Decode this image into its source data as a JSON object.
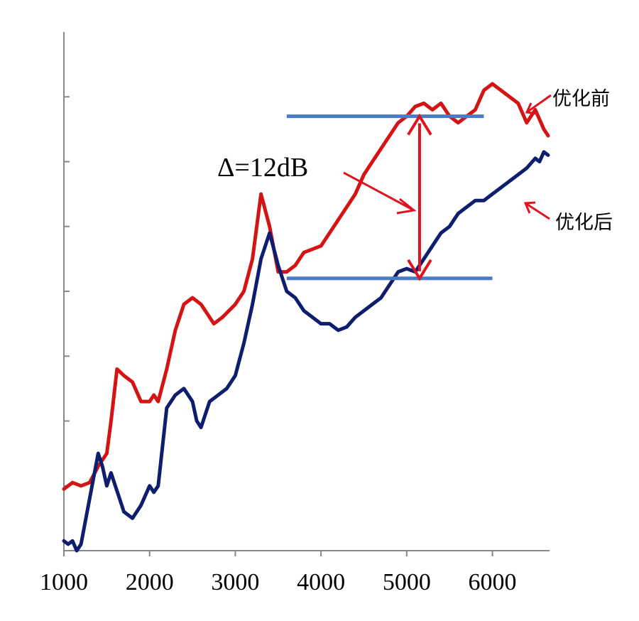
{
  "chart_data": {
    "type": "line",
    "title": "",
    "xlabel": "",
    "ylabel": "",
    "xlim": [
      1000,
      6650
    ],
    "ylim": [
      0,
      8
    ],
    "x_ticks": [
      "1000",
      "2000",
      "3000",
      "4000",
      "5000",
      "6000"
    ],
    "y_ticks": [
      1,
      2,
      3,
      4,
      5,
      6,
      7
    ],
    "grid": false,
    "colors": {
      "before": "#d41414",
      "after": "#0d1e6e",
      "ref_line": "#4a7bc4",
      "arrow": "#e0141e"
    },
    "series": [
      {
        "name": "优化前",
        "color": "#d41414",
        "points": [
          [
            1000,
            0.95
          ],
          [
            1100,
            1.05
          ],
          [
            1200,
            1.0
          ],
          [
            1300,
            1.05
          ],
          [
            1400,
            1.3
          ],
          [
            1500,
            1.5
          ],
          [
            1550,
            2.0
          ],
          [
            1620,
            2.8
          ],
          [
            1700,
            2.7
          ],
          [
            1800,
            2.6
          ],
          [
            1900,
            2.3
          ],
          [
            2000,
            2.3
          ],
          [
            2050,
            2.4
          ],
          [
            2100,
            2.3
          ],
          [
            2200,
            2.8
          ],
          [
            2300,
            3.4
          ],
          [
            2400,
            3.8
          ],
          [
            2500,
            3.9
          ],
          [
            2600,
            3.8
          ],
          [
            2700,
            3.6
          ],
          [
            2750,
            3.5
          ],
          [
            2850,
            3.6
          ],
          [
            3000,
            3.8
          ],
          [
            3100,
            4.0
          ],
          [
            3200,
            4.5
          ],
          [
            3300,
            5.5
          ],
          [
            3400,
            5.0
          ],
          [
            3500,
            4.3
          ],
          [
            3600,
            4.3
          ],
          [
            3700,
            4.4
          ],
          [
            3800,
            4.6
          ],
          [
            3900,
            4.65
          ],
          [
            4000,
            4.7
          ],
          [
            4100,
            4.9
          ],
          [
            4200,
            5.1
          ],
          [
            4300,
            5.3
          ],
          [
            4400,
            5.5
          ],
          [
            4500,
            5.8
          ],
          [
            4600,
            6.0
          ],
          [
            4700,
            6.2
          ],
          [
            4800,
            6.4
          ],
          [
            4900,
            6.6
          ],
          [
            5000,
            6.7
          ],
          [
            5100,
            6.85
          ],
          [
            5200,
            6.9
          ],
          [
            5300,
            6.8
          ],
          [
            5400,
            6.9
          ],
          [
            5500,
            6.7
          ],
          [
            5600,
            6.6
          ],
          [
            5700,
            6.7
          ],
          [
            5800,
            6.8
          ],
          [
            5900,
            7.1
          ],
          [
            6000,
            7.2
          ],
          [
            6100,
            7.1
          ],
          [
            6200,
            7.0
          ],
          [
            6300,
            6.9
          ],
          [
            6400,
            6.6
          ],
          [
            6500,
            6.8
          ],
          [
            6600,
            6.5
          ],
          [
            6650,
            6.4
          ]
        ]
      },
      {
        "name": "优化后",
        "color": "#0d1e6e",
        "points": [
          [
            1000,
            0.15
          ],
          [
            1050,
            0.1
          ],
          [
            1100,
            0.15
          ],
          [
            1150,
            0.0
          ],
          [
            1200,
            0.1
          ],
          [
            1300,
            0.8
          ],
          [
            1400,
            1.5
          ],
          [
            1450,
            1.3
          ],
          [
            1500,
            1.0
          ],
          [
            1550,
            1.2
          ],
          [
            1600,
            1.0
          ],
          [
            1650,
            0.8
          ],
          [
            1700,
            0.6
          ],
          [
            1800,
            0.5
          ],
          [
            1900,
            0.7
          ],
          [
            2000,
            1.0
          ],
          [
            2050,
            0.9
          ],
          [
            2100,
            1.0
          ],
          [
            2200,
            2.2
          ],
          [
            2300,
            2.4
          ],
          [
            2400,
            2.5
          ],
          [
            2500,
            2.3
          ],
          [
            2550,
            2.0
          ],
          [
            2600,
            1.9
          ],
          [
            2700,
            2.3
          ],
          [
            2800,
            2.4
          ],
          [
            2900,
            2.5
          ],
          [
            3000,
            2.7
          ],
          [
            3100,
            3.2
          ],
          [
            3200,
            3.8
          ],
          [
            3300,
            4.5
          ],
          [
            3400,
            4.9
          ],
          [
            3500,
            4.4
          ],
          [
            3600,
            4.0
          ],
          [
            3700,
            3.9
          ],
          [
            3800,
            3.7
          ],
          [
            3900,
            3.6
          ],
          [
            4000,
            3.5
          ],
          [
            4100,
            3.5
          ],
          [
            4200,
            3.4
          ],
          [
            4300,
            3.45
          ],
          [
            4400,
            3.6
          ],
          [
            4500,
            3.7
          ],
          [
            4600,
            3.8
          ],
          [
            4700,
            3.9
          ],
          [
            4800,
            4.1
          ],
          [
            4900,
            4.3
          ],
          [
            5000,
            4.35
          ],
          [
            5100,
            4.3
          ],
          [
            5200,
            4.5
          ],
          [
            5300,
            4.7
          ],
          [
            5400,
            4.9
          ],
          [
            5500,
            5.0
          ],
          [
            5600,
            5.2
          ],
          [
            5700,
            5.3
          ],
          [
            5800,
            5.4
          ],
          [
            5900,
            5.4
          ],
          [
            6000,
            5.5
          ],
          [
            6100,
            5.6
          ],
          [
            6200,
            5.7
          ],
          [
            6300,
            5.8
          ],
          [
            6400,
            5.9
          ],
          [
            6500,
            6.05
          ],
          [
            6550,
            6.0
          ],
          [
            6600,
            6.15
          ],
          [
            6650,
            6.1
          ]
        ]
      }
    ],
    "reference_lines": [
      {
        "y": 6.7,
        "x_start": 3600,
        "x_end": 5900
      },
      {
        "y": 4.2,
        "x_start": 3600,
        "x_end": 6000
      }
    ],
    "annotations": {
      "delta_label": "Δ=12dB",
      "delta_x": 5150,
      "delta_y_top": 6.7,
      "delta_y_bottom": 4.2,
      "before_label": "优化前",
      "after_label": "优化后"
    }
  }
}
